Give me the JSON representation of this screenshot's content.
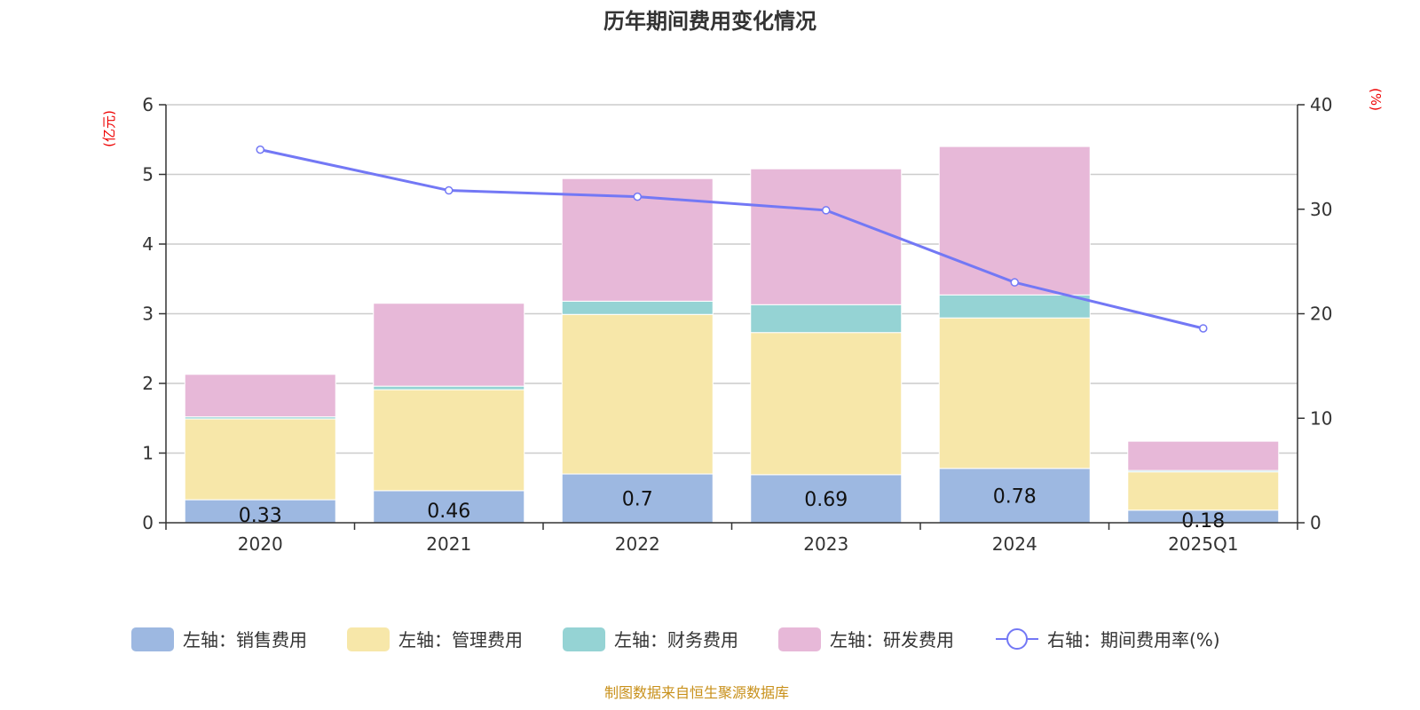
{
  "chart_data": {
    "type": "bar",
    "title": "历年期间费用变化情况",
    "categories": [
      "2020",
      "2021",
      "2022",
      "2023",
      "2024",
      "2025Q1"
    ],
    "left_axis": {
      "unit": "(亿元)",
      "ylim": [
        0,
        6
      ],
      "ticks": [
        "0",
        "1",
        "2",
        "3",
        "4",
        "5",
        "6"
      ]
    },
    "right_axis": {
      "unit": "(%)",
      "ylim": [
        0,
        40
      ],
      "ticks": [
        "0",
        "10",
        "20",
        "30",
        "40"
      ]
    },
    "grid": true,
    "legend_position": "bottom",
    "series": [
      {
        "name": "左轴：销售费用",
        "color": "#9db8e1",
        "values": [
          0.33,
          0.46,
          0.7,
          0.69,
          0.78,
          0.18
        ],
        "labels": [
          "0.33",
          "0.46",
          "0.7",
          "0.69",
          "0.78",
          "0.18"
        ]
      },
      {
        "name": "左轴：管理费用",
        "color": "#f7e7a9",
        "values": [
          1.16,
          1.45,
          2.29,
          2.04,
          2.16,
          0.55
        ]
      },
      {
        "name": "左轴：财务费用",
        "color": "#95d3d4",
        "values": [
          0.03,
          0.05,
          0.19,
          0.4,
          0.33,
          0.02
        ]
      },
      {
        "name": "左轴：研发费用",
        "color": "#e7b8d8",
        "values": [
          0.61,
          1.19,
          1.76,
          1.95,
          2.13,
          0.42
        ]
      }
    ],
    "line": {
      "name": "右轴：期间费用率(%)",
      "color": "#7378f5",
      "values": [
        35.7,
        31.8,
        31.2,
        29.9,
        23.0,
        18.6
      ]
    }
  },
  "source": "制图数据来自恒生聚源数据库"
}
